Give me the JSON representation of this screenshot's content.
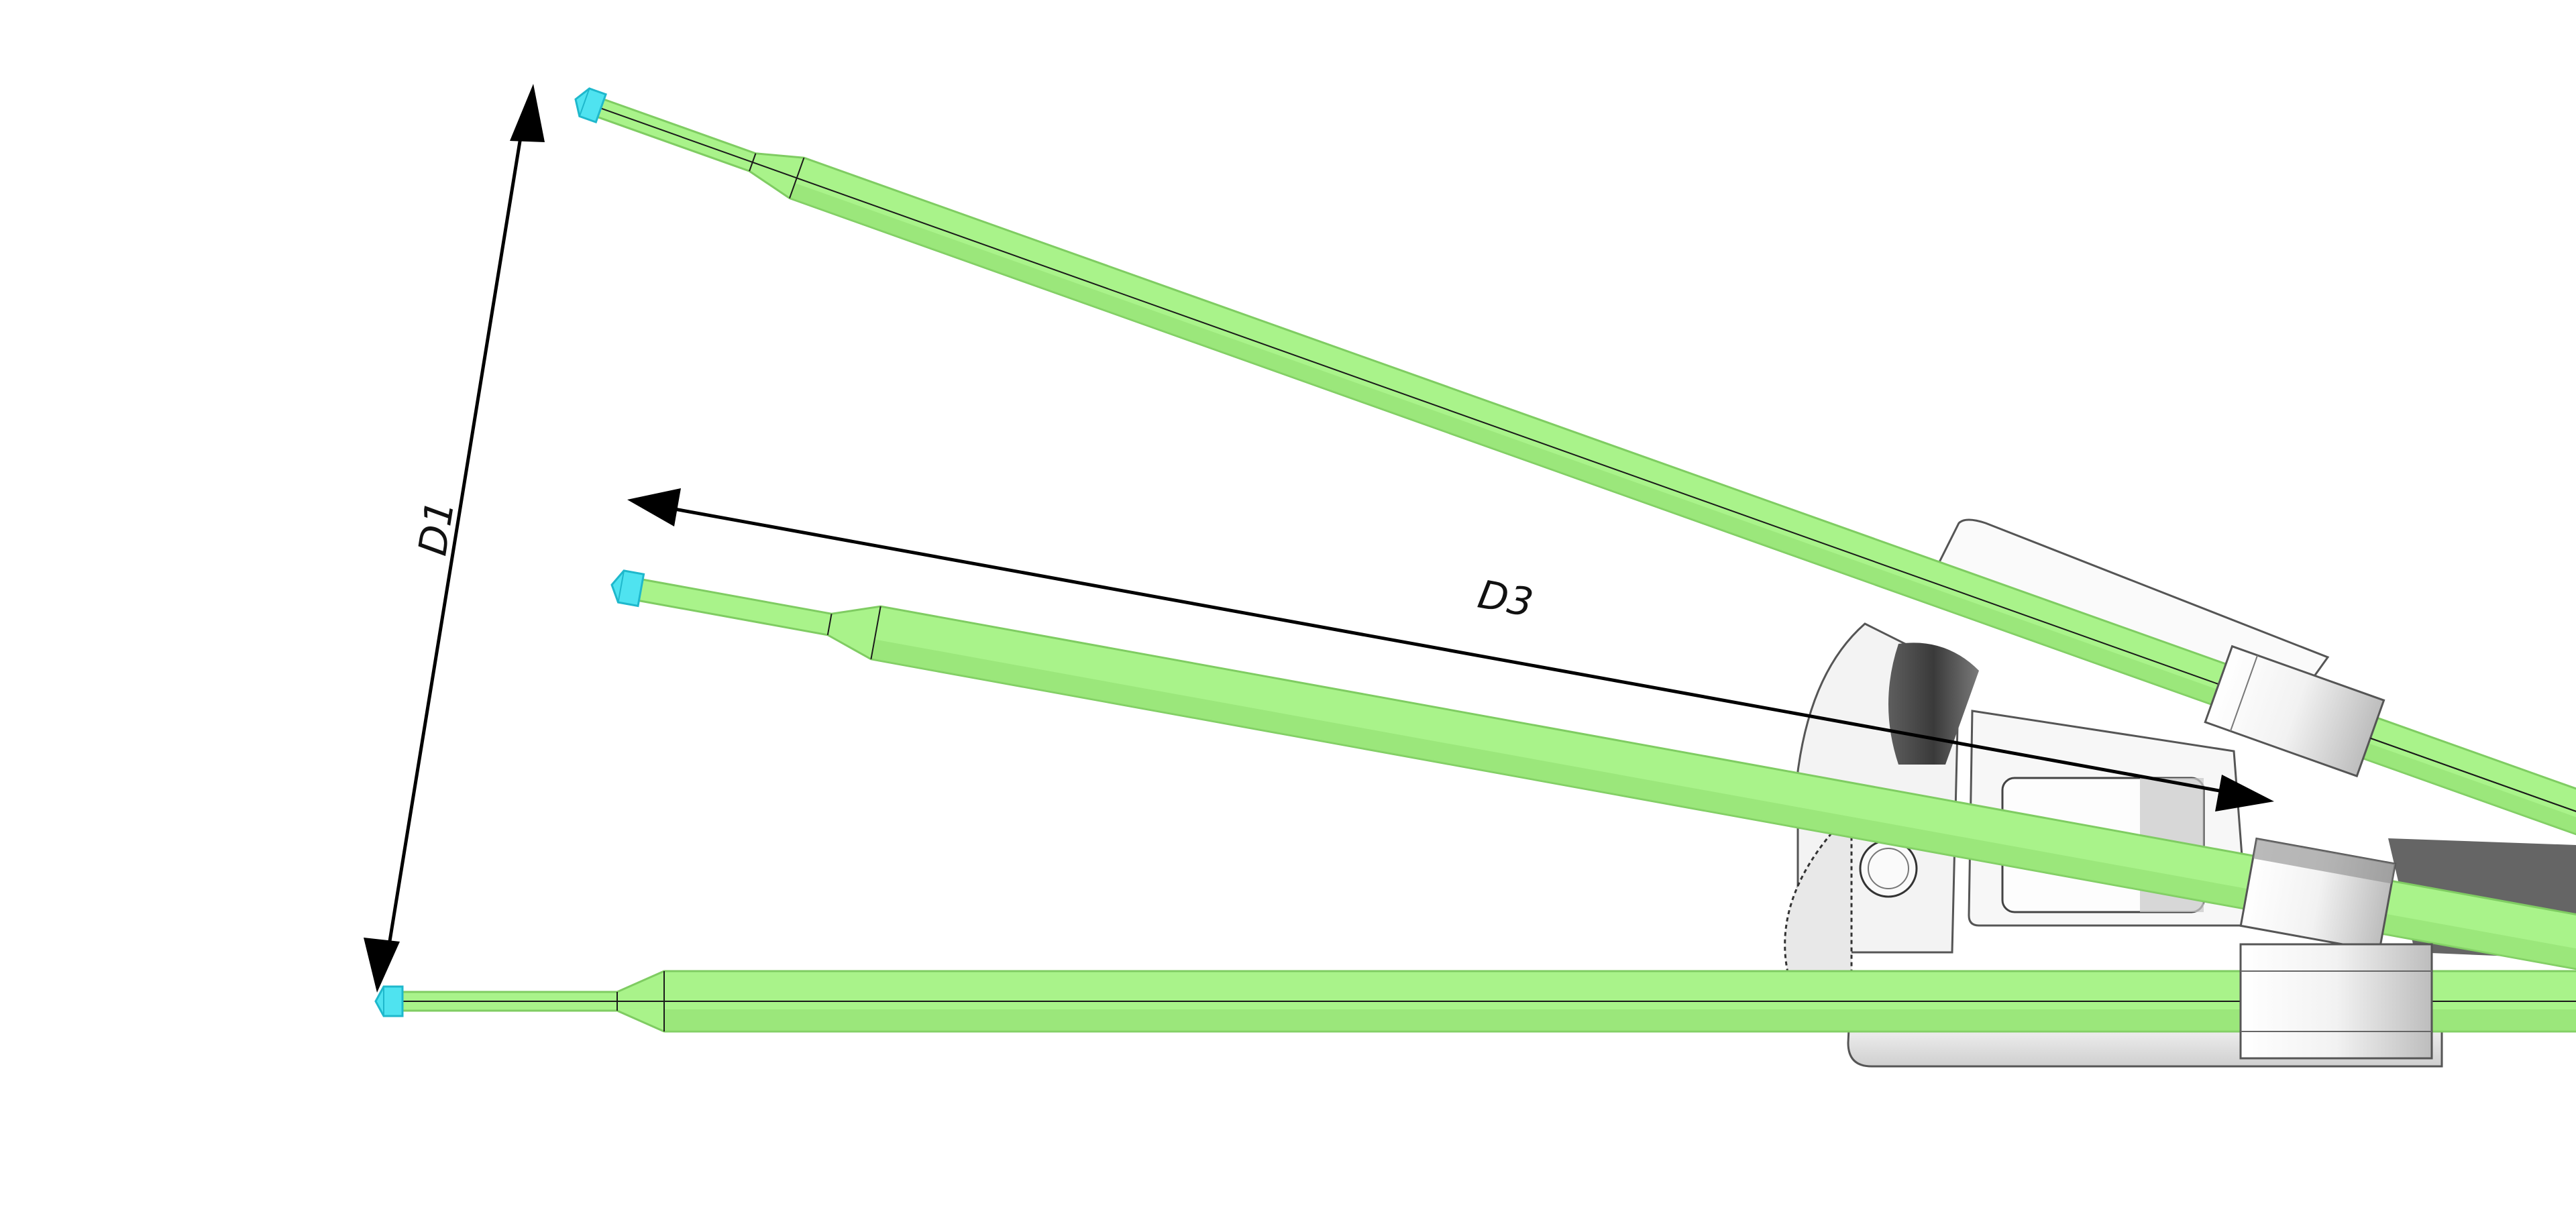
{
  "dimensions": {
    "d1": "D1",
    "d3": "D3"
  },
  "colors": {
    "rod": "#a9f38a",
    "rod_shade": "#8fdc6f",
    "rod_edge": "#6fb552",
    "tip": "#4fe3f0",
    "tip_dark": "#1fb8cc",
    "bracket": "#f4f4f4",
    "bracket_shadow": "#9a9a9a",
    "arrow": "#000000"
  },
  "parts": {
    "rods": [
      "upper-rod",
      "middle-rod",
      "lower-rod"
    ],
    "tips": [
      "upper-tip",
      "middle-tip",
      "lower-tip"
    ],
    "mechanism": "hinge-mechanism"
  }
}
